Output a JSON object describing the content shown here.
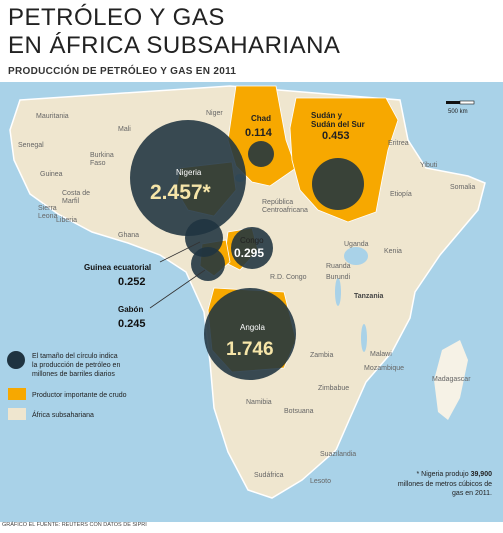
{
  "title": {
    "line1": "PETRÓLEO Y GAS",
    "line2": "EN ÁFRICA SUBSAHARIANA",
    "subtitle": "PRODUCCIÓN DE PETRÓLEO Y GAS EN 2011"
  },
  "colors": {
    "sea": "#a9d2e8",
    "land": "#efe6cf",
    "land_other": "#f6f2e6",
    "producer": "#f7a800",
    "circle": "#1f3340",
    "lake": "#a9d2e8"
  },
  "countries": {
    "mauritania": "Mauritania",
    "mali": "Mali",
    "niger": "Niger",
    "senegal": "Senegal",
    "burkina": "Burkina\nFaso",
    "guinea": "Guinea",
    "costa_marfil": "Costa de\nMarfil",
    "ghana": "Ghana",
    "sierra": "Sierra\nLeona",
    "liberia": "Liberia",
    "eritrea": "Eritrea",
    "yibuti": "Yibuti",
    "etiopia": "Etiopía",
    "somalia": "Somalia",
    "rca": "República\nCentroafricana",
    "uganda": "Uganda",
    "kenia": "Kenia",
    "ruanda": "Ruanda",
    "burundi": "Burundi",
    "rdcongo": "R.D. Congo",
    "tanzania": "Tanzania",
    "zambia": "Zambia",
    "malawi": "Malawi",
    "mozambique": "Mozambique",
    "zimbabue": "Zimbabue",
    "namibia": "Namibia",
    "botsuana": "Botsuana",
    "madagascar": "Madagascar",
    "suazilandia": "Suazilandia",
    "lesoto": "Lesoto",
    "sudafrica": "Sudáfrica"
  },
  "producers": {
    "nigeria": {
      "name": "Nigeria",
      "value": "2.457*"
    },
    "chad": {
      "name": "Chad",
      "value": "0.114"
    },
    "sudan": {
      "name": "Sudán y\nSudán del Sur",
      "value": "0.453"
    },
    "congo": {
      "name": "Congo",
      "value": "0.295"
    },
    "guinea_ec": {
      "name": "Guinea ecuatorial",
      "value": "0.252"
    },
    "gabon": {
      "name": "Gabón",
      "value": "0.245"
    },
    "angola": {
      "name": "Angola",
      "value": "1.746"
    }
  },
  "legend": {
    "circle_text": "El tamaño del círculo indica\nla producción de petróleo en\nmillones de barriles diarios",
    "producer_text": "Productor importante de crudo",
    "region_text": "África subsahariana"
  },
  "scale": {
    "label": "500 km"
  },
  "note": {
    "prefix": "* Nigeria produjo ",
    "bold": "39,900",
    "rest": "\nmillones de metros cúbicos de\ngas en 2011."
  },
  "footer": "GRÁFICO EL FUENTE: REUTERS CON DATOS DE SIPRI"
}
